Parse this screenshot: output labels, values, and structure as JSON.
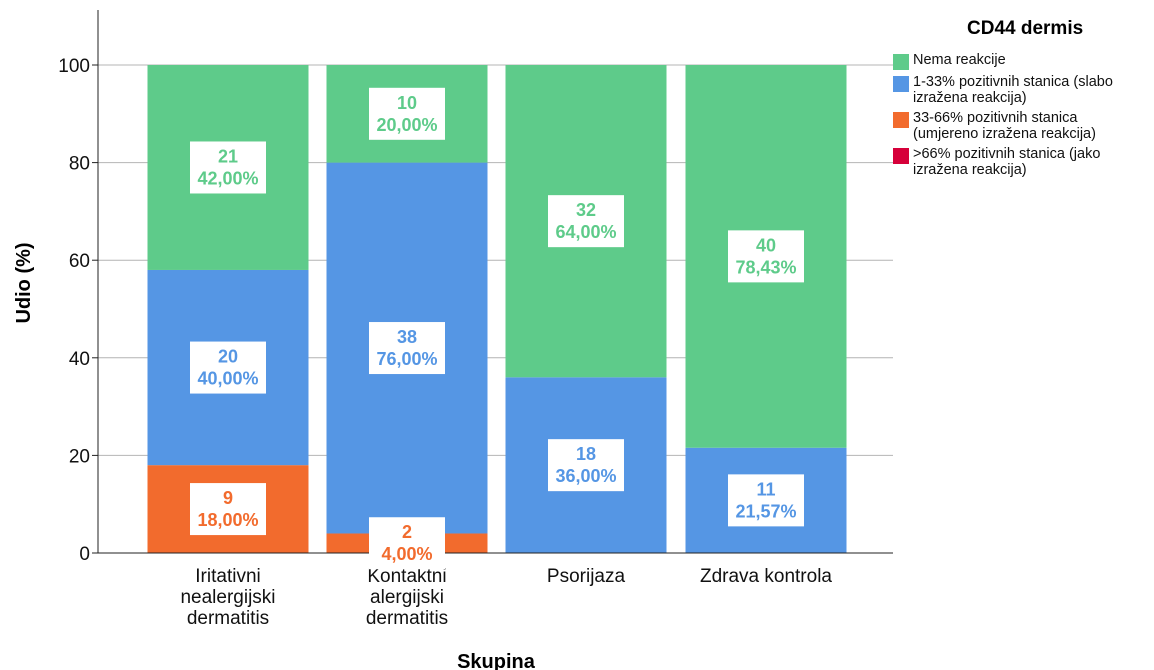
{
  "chart_data": {
    "type": "bar",
    "stacked": true,
    "title": "",
    "xlabel": "Skupina",
    "ylabel": "Udio (%)",
    "ylim": [
      0,
      110
    ],
    "yticks": [
      0,
      20,
      40,
      60,
      80,
      100
    ],
    "grid": true,
    "legend_position": "top-right",
    "categories": [
      "Iritativni\nnealergijski\ndermatitis",
      "Kontaktni\nalergijski\ndermatitis",
      "Psorijaza",
      "Zdrava kontrola"
    ],
    "series": [
      {
        "name": "Nema reakcije",
        "color": "#5ecb8a",
        "counts": [
          21,
          10,
          32,
          40
        ],
        "values": [
          42.0,
          20.0,
          64.0,
          78.43
        ],
        "labels": [
          "42,00%",
          "20,00%",
          "64,00%",
          "78,43%"
        ]
      },
      {
        "name": "1-33% pozitivnih stanica (slabo\nizražena reakcija)",
        "color": "#5596e4",
        "counts": [
          20,
          38,
          18,
          11
        ],
        "values": [
          40.0,
          76.0,
          36.0,
          21.57
        ],
        "labels": [
          "40,00%",
          "76,00%",
          "36,00%",
          "21,57%"
        ]
      },
      {
        "name": "33-66% pozitivnih stanica\n(umjereno izražena reakcija)",
        "color": "#f26b2d",
        "counts": [
          9,
          2,
          0,
          0
        ],
        "values": [
          18.0,
          4.0,
          0,
          0
        ],
        "labels": [
          "18,00%",
          "4,00%",
          "",
          ""
        ]
      },
      {
        "name": ">66% pozitivnih stanica (jako\nizražena reakcija)",
        "color": "#d6003a",
        "counts": [
          0,
          0,
          0,
          0
        ],
        "values": [
          0,
          0,
          0,
          0
        ],
        "labels": [
          "",
          "",
          "",
          ""
        ]
      }
    ],
    "legend_title": "CD44 dermis"
  }
}
